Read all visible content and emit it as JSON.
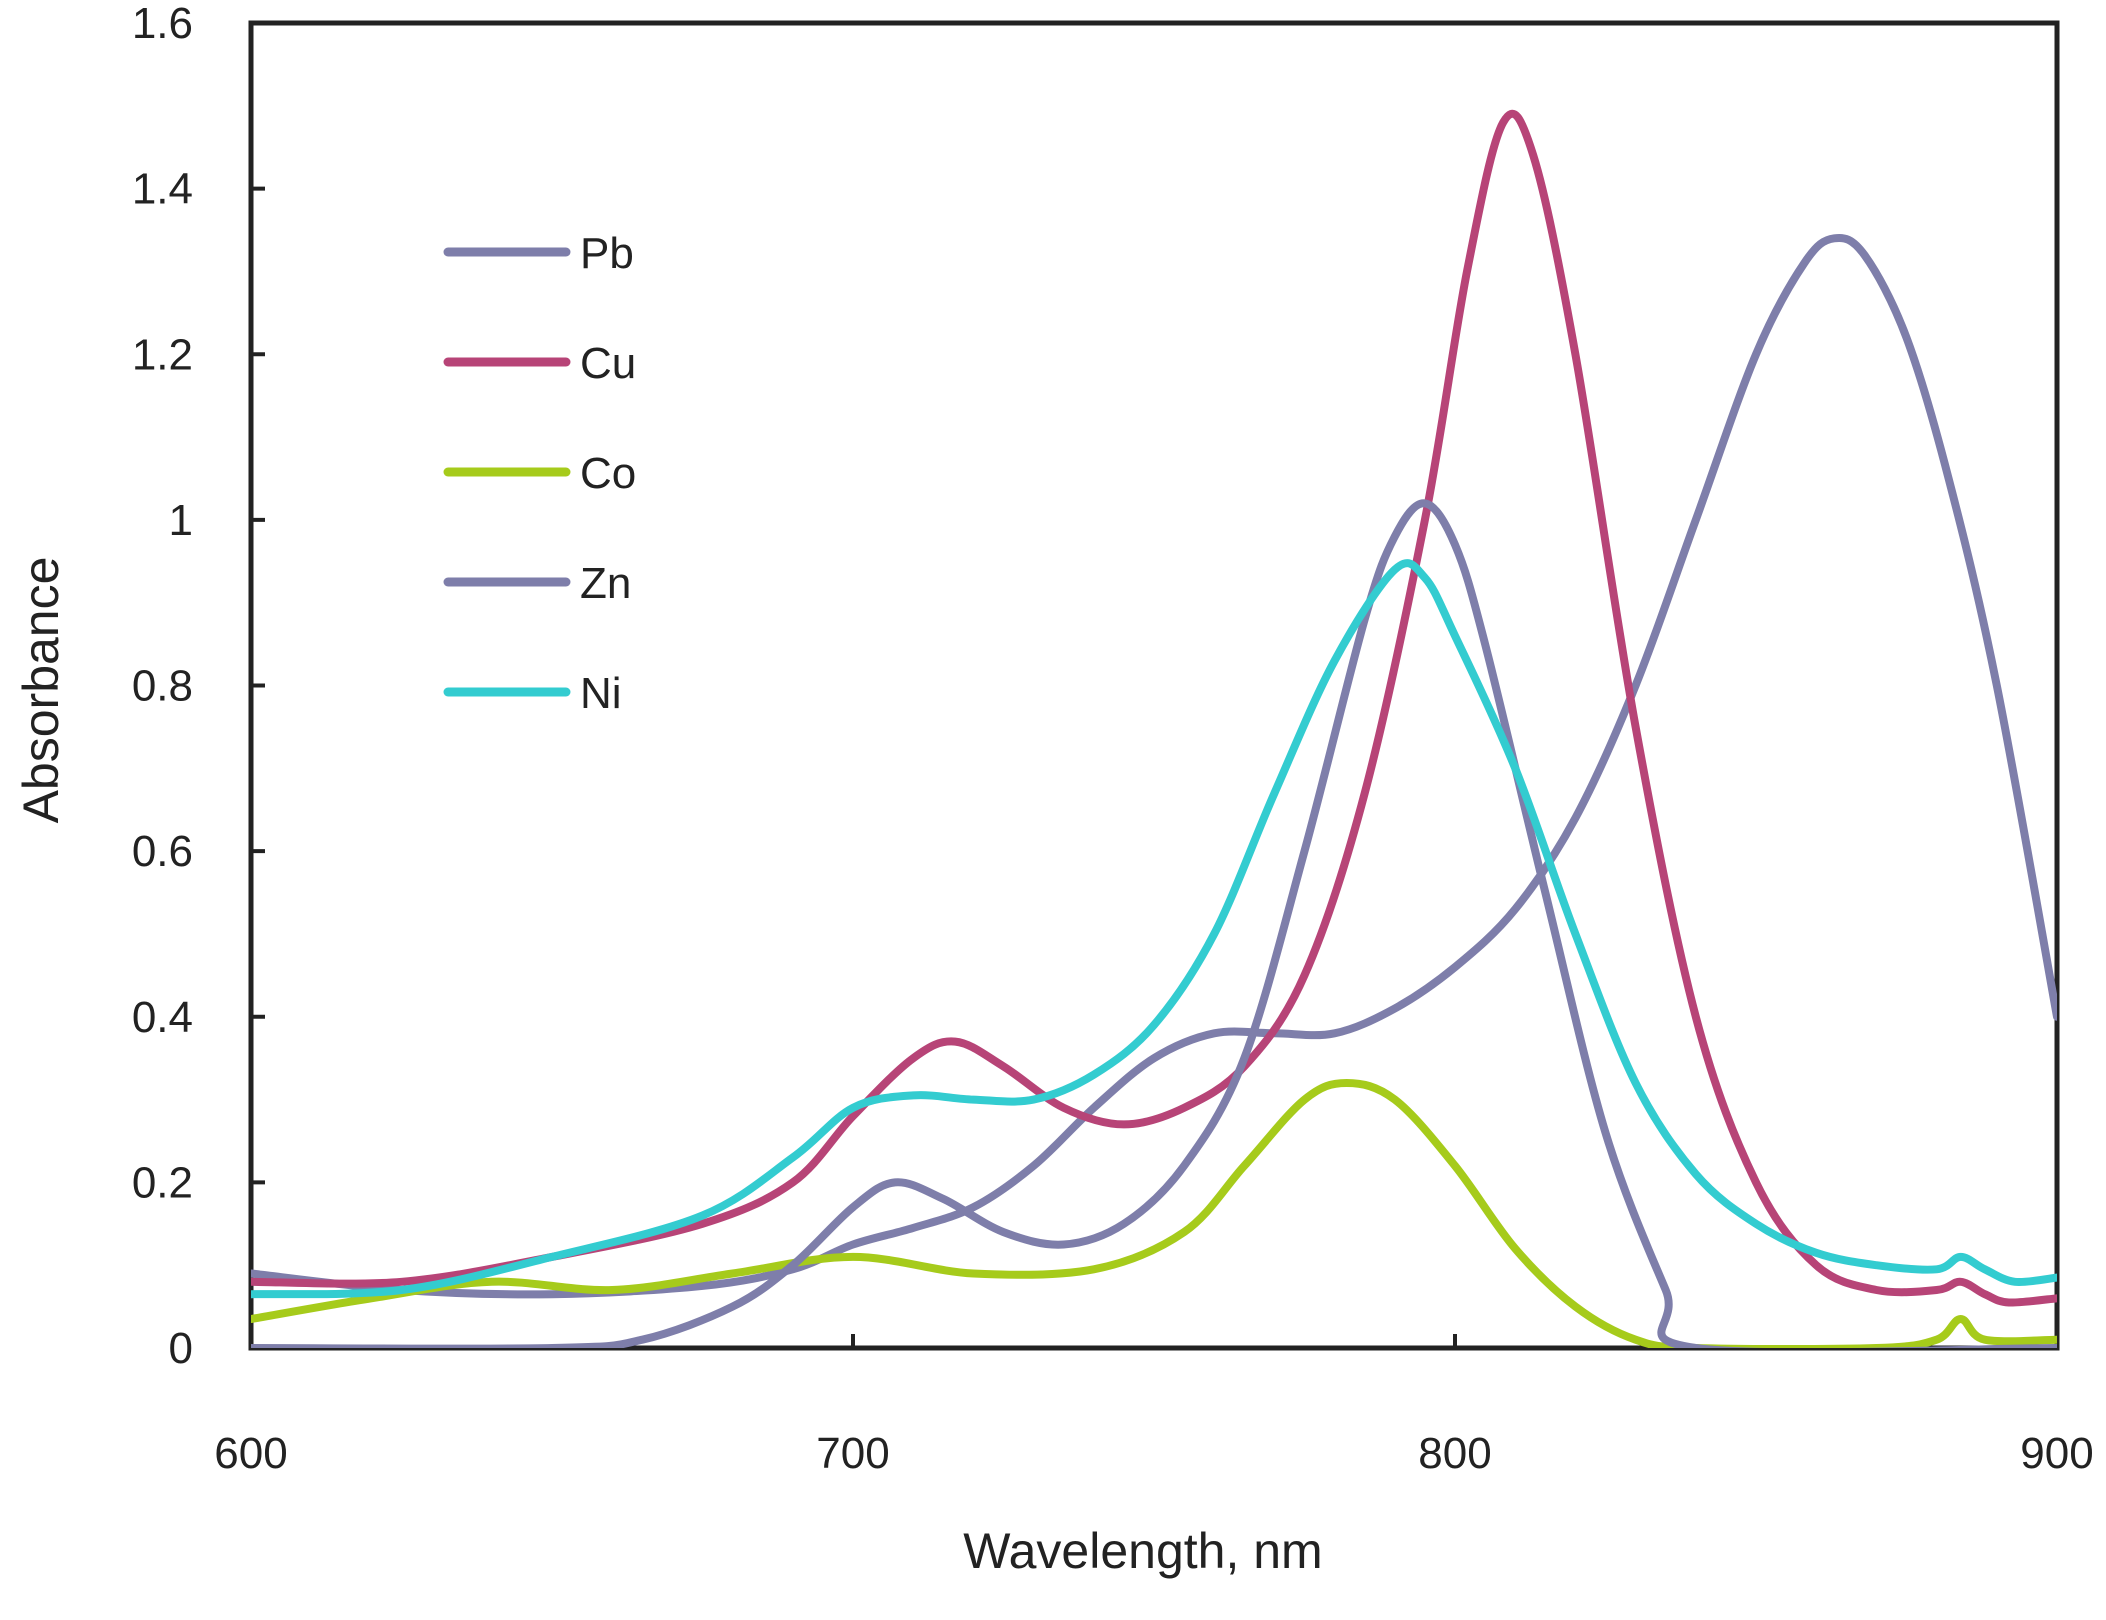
{
  "chart_data": {
    "type": "line",
    "title": "",
    "xlabel": "Wavelength, nm",
    "ylabel": "Absorbance",
    "xlim": [
      600,
      900
    ],
    "ylim": [
      0,
      1.6
    ],
    "xticks": [
      600,
      700,
      800,
      900
    ],
    "xtick_labels": [
      "600",
      "700",
      "800",
      "900"
    ],
    "yticks": [
      0,
      0.2,
      0.4,
      0.6,
      0.8,
      1,
      1.2,
      1.4,
      1.6
    ],
    "ytick_labels": [
      "0",
      "0.2",
      "0.4",
      "0.6",
      "0.8",
      "1",
      "1.2",
      "1.4",
      "1.6"
    ],
    "grid": false,
    "legend_position": "top-left",
    "series": [
      {
        "name": "Pb",
        "color": "#7e7eaa",
        "points": [
          [
            600,
            0.09
          ],
          [
            625,
            0.07
          ],
          [
            650,
            0.065
          ],
          [
            675,
            0.075
          ],
          [
            690,
            0.095
          ],
          [
            700,
            0.125
          ],
          [
            710,
            0.145
          ],
          [
            720,
            0.17
          ],
          [
            730,
            0.22
          ],
          [
            740,
            0.29
          ],
          [
            750,
            0.35
          ],
          [
            760,
            0.38
          ],
          [
            770,
            0.38
          ],
          [
            780,
            0.38
          ],
          [
            790,
            0.41
          ],
          [
            800,
            0.46
          ],
          [
            810,
            0.53
          ],
          [
            820,
            0.64
          ],
          [
            830,
            0.8
          ],
          [
            840,
            1.0
          ],
          [
            850,
            1.2
          ],
          [
            858,
            1.31
          ],
          [
            863,
            1.34
          ],
          [
            868,
            1.32
          ],
          [
            875,
            1.22
          ],
          [
            882,
            1.05
          ],
          [
            890,
            0.8
          ],
          [
            900,
            0.4
          ]
        ]
      },
      {
        "name": "Cu",
        "color": "#b74477",
        "points": [
          [
            600,
            0.08
          ],
          [
            625,
            0.08
          ],
          [
            650,
            0.11
          ],
          [
            675,
            0.15
          ],
          [
            690,
            0.2
          ],
          [
            700,
            0.28
          ],
          [
            710,
            0.35
          ],
          [
            717,
            0.37
          ],
          [
            725,
            0.34
          ],
          [
            735,
            0.29
          ],
          [
            745,
            0.27
          ],
          [
            755,
            0.29
          ],
          [
            765,
            0.34
          ],
          [
            775,
            0.45
          ],
          [
            785,
            0.67
          ],
          [
            795,
            1.0
          ],
          [
            802,
            1.3
          ],
          [
            808,
            1.48
          ],
          [
            813,
            1.44
          ],
          [
            820,
            1.2
          ],
          [
            830,
            0.75
          ],
          [
            840,
            0.4
          ],
          [
            850,
            0.2
          ],
          [
            860,
            0.1
          ],
          [
            870,
            0.07
          ],
          [
            880,
            0.07
          ],
          [
            884,
            0.08
          ],
          [
            888,
            0.065
          ],
          [
            892,
            0.055
          ],
          [
            900,
            0.06
          ]
        ]
      },
      {
        "name": "Co",
        "color": "#a6cb1b",
        "points": [
          [
            600,
            0.035
          ],
          [
            620,
            0.06
          ],
          [
            640,
            0.08
          ],
          [
            660,
            0.07
          ],
          [
            680,
            0.09
          ],
          [
            700,
            0.11
          ],
          [
            720,
            0.09
          ],
          [
            740,
            0.095
          ],
          [
            755,
            0.14
          ],
          [
            765,
            0.22
          ],
          [
            775,
            0.3
          ],
          [
            782,
            0.32
          ],
          [
            790,
            0.3
          ],
          [
            800,
            0.22
          ],
          [
            810,
            0.12
          ],
          [
            820,
            0.05
          ],
          [
            830,
            0.01
          ],
          [
            840,
            0
          ],
          [
            870,
            0
          ],
          [
            880,
            0.01
          ],
          [
            884,
            0.035
          ],
          [
            888,
            0.01
          ],
          [
            900,
            0.01
          ]
        ]
      },
      {
        "name": "Zn",
        "color": "#7e7eaa",
        "points": [
          [
            600,
            0
          ],
          [
            650,
            0
          ],
          [
            665,
            0.01
          ],
          [
            680,
            0.05
          ],
          [
            690,
            0.1
          ],
          [
            700,
            0.17
          ],
          [
            707,
            0.2
          ],
          [
            715,
            0.18
          ],
          [
            725,
            0.14
          ],
          [
            735,
            0.125
          ],
          [
            745,
            0.15
          ],
          [
            755,
            0.22
          ],
          [
            765,
            0.35
          ],
          [
            775,
            0.6
          ],
          [
            785,
            0.88
          ],
          [
            790,
            0.98
          ],
          [
            795,
            1.02
          ],
          [
            800,
            0.97
          ],
          [
            805,
            0.85
          ],
          [
            815,
            0.55
          ],
          [
            825,
            0.26
          ],
          [
            835,
            0.07
          ],
          [
            840,
            0
          ],
          [
            900,
            0
          ]
        ]
      },
      {
        "name": "Ni",
        "color": "#33ccd0",
        "points": [
          [
            600,
            0.065
          ],
          [
            625,
            0.07
          ],
          [
            650,
            0.11
          ],
          [
            675,
            0.16
          ],
          [
            690,
            0.23
          ],
          [
            700,
            0.29
          ],
          [
            710,
            0.305
          ],
          [
            720,
            0.3
          ],
          [
            730,
            0.3
          ],
          [
            740,
            0.33
          ],
          [
            750,
            0.39
          ],
          [
            760,
            0.5
          ],
          [
            770,
            0.67
          ],
          [
            780,
            0.83
          ],
          [
            790,
            0.94
          ],
          [
            795,
            0.93
          ],
          [
            800,
            0.86
          ],
          [
            810,
            0.7
          ],
          [
            820,
            0.5
          ],
          [
            830,
            0.32
          ],
          [
            840,
            0.21
          ],
          [
            850,
            0.15
          ],
          [
            860,
            0.115
          ],
          [
            870,
            0.1
          ],
          [
            880,
            0.095
          ],
          [
            884,
            0.11
          ],
          [
            888,
            0.095
          ],
          [
            893,
            0.08
          ],
          [
            900,
            0.085
          ]
        ]
      }
    ]
  }
}
